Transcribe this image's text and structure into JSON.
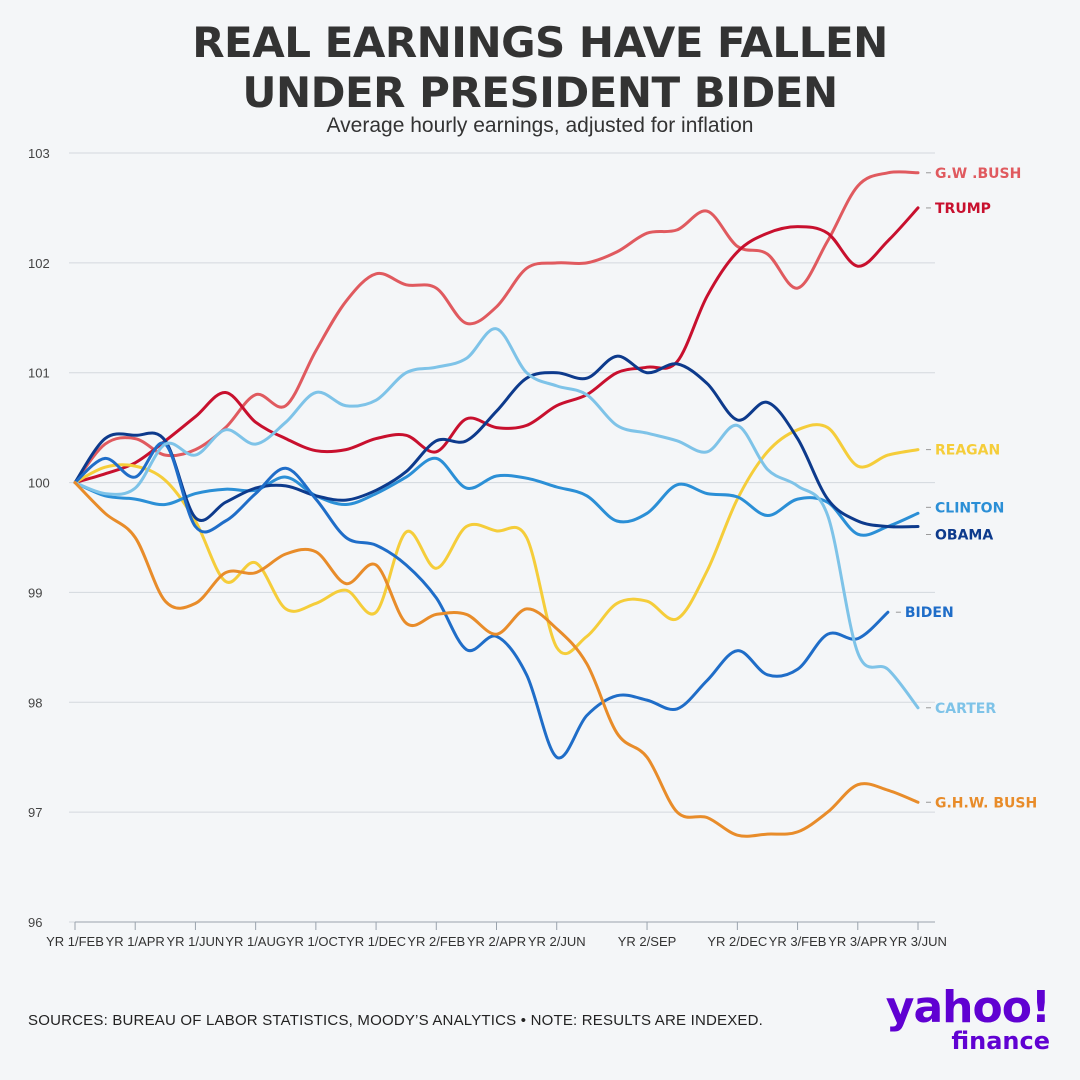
{
  "header": {
    "title_line1": "REAL EARNINGS HAVE FALLEN",
    "title_line2": "UNDER PRESIDENT BIDEN",
    "subtitle": "Average hourly earnings, adjusted for inflation"
  },
  "footer": {
    "sources": "SOURCES: BUREAU OF LABOR STATISTICS, MOODY’S ANALYTICS • NOTE: RESULTS ARE INDEXED.",
    "logo_word": "yahoo!",
    "logo_sub": "finance"
  },
  "chart_data": {
    "type": "line",
    "title": "REAL EARNINGS HAVE FALLEN UNDER PRESIDENT BIDEN",
    "subtitle": "Average hourly earnings, adjusted for inflation",
    "xlabel": "",
    "ylabel": "",
    "ylim": [
      96,
      103
    ],
    "yticks": [
      96,
      97,
      98,
      99,
      100,
      101,
      102,
      103
    ],
    "grid": true,
    "legend": "direct labels at right end of each line",
    "x_count": 29,
    "xtick_labels": [
      {
        "i": 0,
        "label": "YR 1/FEB"
      },
      {
        "i": 2,
        "label": "YR 1/APR"
      },
      {
        "i": 4,
        "label": "YR 1/JUN"
      },
      {
        "i": 6,
        "label": "YR 1/AUG"
      },
      {
        "i": 8,
        "label": "YR 1/OCT"
      },
      {
        "i": 10,
        "label": "YR 1/DEC"
      },
      {
        "i": 12,
        "label": "YR 2/FEB"
      },
      {
        "i": 14,
        "label": "YR 2/APR"
      },
      {
        "i": 16,
        "label": "YR 2/JUN"
      },
      {
        "i": 19,
        "label": "YR 2/SEP"
      },
      {
        "i": 22,
        "label": "YR 2/DEC"
      },
      {
        "i": 24,
        "label": "YR 3/FEB"
      },
      {
        "i": 26,
        "label": "YR 3/APR"
      },
      {
        "i": 28,
        "label": "YR 3/JUN"
      }
    ],
    "series": [
      {
        "name": "G.W .BUSH",
        "color": "#e05a5f",
        "values": [
          100,
          100.35,
          100.4,
          100.25,
          100.3,
          100.5,
          100.8,
          100.7,
          101.2,
          101.65,
          101.9,
          101.8,
          101.77,
          101.45,
          101.6,
          101.95,
          102,
          102,
          102.1,
          102.27,
          102.3,
          102.47,
          102.15,
          102.08,
          101.77,
          102.2,
          102.7,
          102.82,
          102.82
        ]
      },
      {
        "name": "TRUMP",
        "color": "#c8102e",
        "values": [
          100,
          100.08,
          100.18,
          100.38,
          100.6,
          100.82,
          100.55,
          100.4,
          100.29,
          100.3,
          100.4,
          100.43,
          100.28,
          100.58,
          100.5,
          100.52,
          100.7,
          100.8,
          101,
          101.05,
          101.1,
          101.7,
          102.1,
          102.27,
          102.33,
          102.27,
          101.97,
          102.2,
          102.5
        ]
      },
      {
        "name": "REAGAN",
        "color": "#f5cd3a",
        "values": [
          100,
          100.14,
          100.15,
          100.02,
          99.65,
          99.1,
          99.27,
          98.85,
          98.9,
          99.02,
          98.82,
          99.55,
          99.22,
          99.6,
          99.56,
          99.5,
          98.5,
          98.6,
          98.9,
          98.92,
          98.76,
          99.2,
          99.85,
          100.28,
          100.48,
          100.5,
          100.15,
          100.25,
          100.3
        ]
      },
      {
        "name": "CLINTON",
        "color": "#2b8fd6",
        "values": [
          100,
          99.88,
          99.85,
          99.8,
          99.9,
          99.94,
          99.93,
          100.05,
          99.88,
          99.8,
          99.9,
          100.05,
          100.22,
          99.95,
          100.06,
          100.04,
          99.96,
          99.88,
          99.65,
          99.72,
          99.98,
          99.9,
          99.87,
          99.7,
          99.85,
          99.82,
          99.53,
          99.6,
          99.72
        ]
      },
      {
        "name": "OBAMA",
        "color": "#0d3a8c",
        "values": [
          100,
          100.4,
          100.43,
          100.38,
          99.68,
          99.82,
          99.95,
          99.97,
          99.88,
          99.84,
          99.93,
          100.1,
          100.38,
          100.38,
          100.65,
          100.95,
          101,
          100.95,
          101.15,
          101,
          101.08,
          100.9,
          100.57,
          100.73,
          100.4,
          99.85,
          99.65,
          99.6,
          99.6
        ]
      },
      {
        "name": "BIDEN",
        "color": "#1f6dc8",
        "values": [
          100,
          100.22,
          100.05,
          100.35,
          99.6,
          99.65,
          99.9,
          100.13,
          99.85,
          99.5,
          99.43,
          99.25,
          98.95,
          98.48,
          98.6,
          98.25,
          97.5,
          97.88,
          98.06,
          98.02,
          97.94,
          98.2,
          98.47,
          98.25,
          98.3,
          98.62,
          98.58,
          98.82
        ]
      },
      {
        "name": "CARTER",
        "color": "#7ec3e8",
        "values": [
          100,
          99.9,
          99.95,
          100.35,
          100.25,
          100.48,
          100.35,
          100.55,
          100.82,
          100.7,
          100.75,
          101,
          101.05,
          101.13,
          101.4,
          101,
          100.88,
          100.8,
          100.52,
          100.45,
          100.38,
          100.28,
          100.52,
          100.12,
          99.97,
          99.7,
          98.45,
          98.3,
          97.95
        ]
      },
      {
        "name": "G.H.W. BUSH",
        "color": "#e88c2a",
        "values": [
          100,
          99.72,
          99.5,
          98.92,
          98.9,
          99.18,
          99.18,
          99.35,
          99.37,
          99.08,
          99.25,
          98.72,
          98.8,
          98.8,
          98.62,
          98.85,
          98.67,
          98.35,
          97.72,
          97.5,
          97,
          96.95,
          96.79,
          96.8,
          96.82,
          97,
          97.25,
          97.2,
          97.09
        ]
      }
    ]
  }
}
